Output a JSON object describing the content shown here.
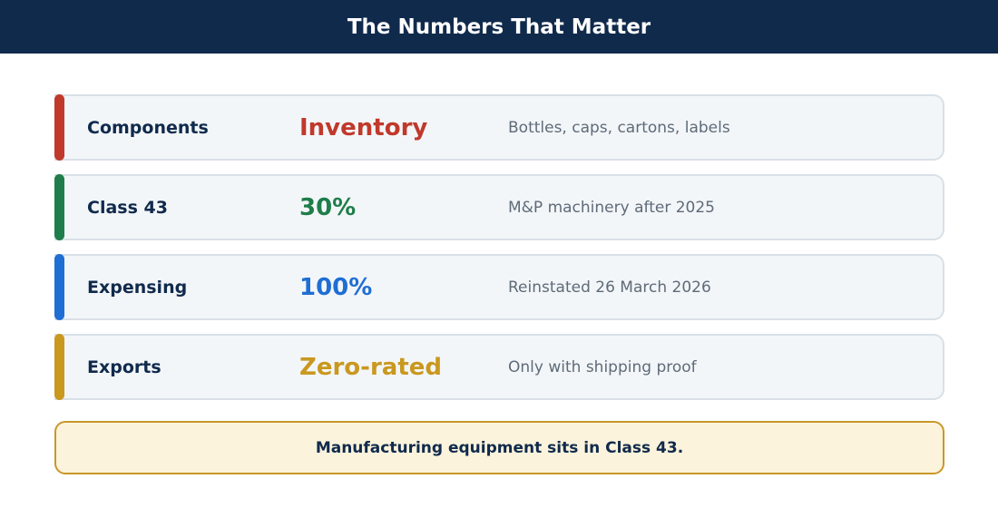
{
  "header": {
    "title": "The Numbers That Matter"
  },
  "rows": [
    {
      "label": "Components",
      "value": "Inventory",
      "description": "Bottles, caps, cartons, labels",
      "color": "#c0392b"
    },
    {
      "label": "Class 43",
      "value": "30%",
      "description": "M&P machinery after 2025",
      "color": "#1e7d4a"
    },
    {
      "label": "Expensing",
      "value": "100%",
      "description": "Reinstated 26 March 2026",
      "color": "#1f6ed4"
    },
    {
      "label": "Exports",
      "value": "Zero-rated",
      "description": "Only with shipping proof",
      "color": "#c9981f"
    }
  ],
  "footnote": {
    "text": "Manufacturing equipment sits in Class 43."
  }
}
